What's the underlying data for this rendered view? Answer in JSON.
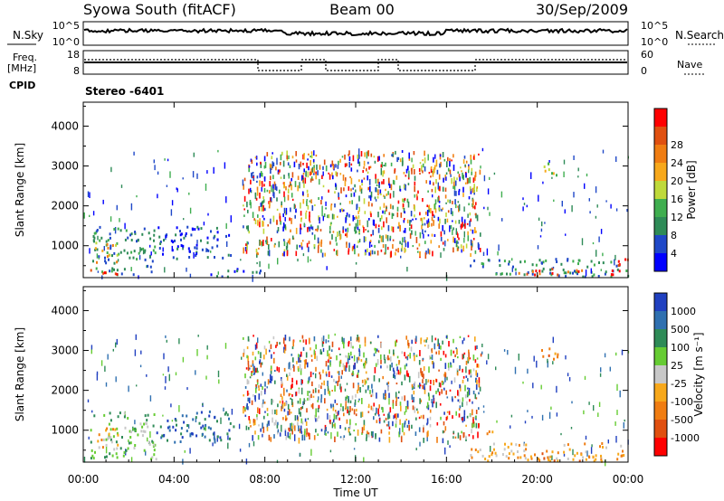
{
  "header": {
    "station": "Syowa South (fitACF)",
    "beam": "Beam 00",
    "date": "30/Sep/2009"
  },
  "top_panel": {
    "left_label": "N.Sky",
    "right_label": "N.Search",
    "left_ticks": [
      "10^5",
      "10^0"
    ],
    "right_ticks": [
      "10^5",
      "10^0"
    ]
  },
  "freq_panel": {
    "left_label_1": "Freq.",
    "left_label_2": "[MHz]",
    "cpid_label": "CPID",
    "right_label": "Nave",
    "left_ticks": [
      "18",
      "8"
    ],
    "right_ticks": [
      "60",
      "0"
    ],
    "stereo_text": "Stereo -6401"
  },
  "colors": {
    "power_scale": [
      "#0000ff",
      "#1f48c8",
      "#2e8b57",
      "#3fae4f",
      "#bfd93a",
      "#f7a81b",
      "#f07d12",
      "#e05010",
      "#ff0000"
    ],
    "velocity_scale": [
      "#2040c0",
      "#2f70b0",
      "#2e8b57",
      "#66cc33",
      "#c8c8c8",
      "#f7a81b",
      "#f07d12",
      "#e05010",
      "#ff0000"
    ]
  },
  "chart_data": [
    {
      "type": "heatmap",
      "name": "power",
      "xlabel": "",
      "ylabel": "Slant Range [km]",
      "xlim": [
        0,
        24
      ],
      "ylim": [
        200,
        4600
      ],
      "yticks": [
        "1000",
        "2000",
        "3000",
        "4000"
      ],
      "colorbar": {
        "label": "Power [dB]",
        "ticks": [
          "4",
          "8",
          "12",
          "16",
          "20",
          "24",
          "28"
        ]
      },
      "regions": [
        {
          "t0": 0.3,
          "t1": 3.2,
          "r0": 300,
          "r1": 1500,
          "level": 2
        },
        {
          "t0": 0.5,
          "t1": 1.5,
          "r0": 600,
          "r1": 1100,
          "level": 5
        },
        {
          "t0": 3.2,
          "t1": 6.6,
          "r0": 700,
          "r1": 1500,
          "level": 1
        },
        {
          "t0": 5.5,
          "t1": 8.0,
          "r0": 250,
          "r1": 450,
          "level": 1
        },
        {
          "t0": 17.0,
          "t1": 24.0,
          "r0": 250,
          "r1": 700,
          "level": 2
        },
        {
          "t0": 19.0,
          "t1": 22.0,
          "r0": 250,
          "r1": 450,
          "level": 7
        },
        {
          "t0": 20.0,
          "t1": 21.0,
          "r0": 2800,
          "r1": 3100,
          "level": 4
        },
        {
          "t0": 23.2,
          "t1": 24.0,
          "r0": 250,
          "r1": 700,
          "level": 8
        },
        {
          "t0": 0.3,
          "t1": 1.5,
          "r0": 250,
          "r1": 450,
          "level": 8
        }
      ]
    },
    {
      "type": "heatmap",
      "name": "velocity",
      "xlabel": "Time UT",
      "ylabel": "Slant Range [km]",
      "xlim": [
        0,
        24
      ],
      "ylim": [
        200,
        4600
      ],
      "xticks": [
        "00:00",
        "04:00",
        "08:00",
        "12:00",
        "16:00",
        "20:00",
        "00:00"
      ],
      "yticks": [
        "1000",
        "2000",
        "3000",
        "4000"
      ],
      "colorbar": {
        "label": "Velocity [m s⁻¹]",
        "ticks": [
          "1000",
          "500",
          "100",
          "25",
          "-25",
          "-100",
          "-500",
          "-1000"
        ]
      },
      "regions": [
        {
          "t0": 0.3,
          "t1": 3.2,
          "r0": 300,
          "r1": 1500,
          "level": 3
        },
        {
          "t0": 0.5,
          "t1": 1.5,
          "r0": 600,
          "r1": 1100,
          "level": 5
        },
        {
          "t0": 3.2,
          "t1": 6.6,
          "r0": 700,
          "r1": 1500,
          "level": 1
        },
        {
          "t0": 17.0,
          "t1": 24.0,
          "r0": 250,
          "r1": 700,
          "level": 5
        },
        {
          "t0": 19.0,
          "t1": 22.0,
          "r0": 250,
          "r1": 450,
          "level": 6
        },
        {
          "t0": 20.0,
          "t1": 21.0,
          "r0": 2800,
          "r1": 3100,
          "level": 6
        },
        {
          "t0": 17.5,
          "t1": 18.0,
          "r0": 900,
          "r1": 1100,
          "level": 6
        }
      ]
    }
  ]
}
